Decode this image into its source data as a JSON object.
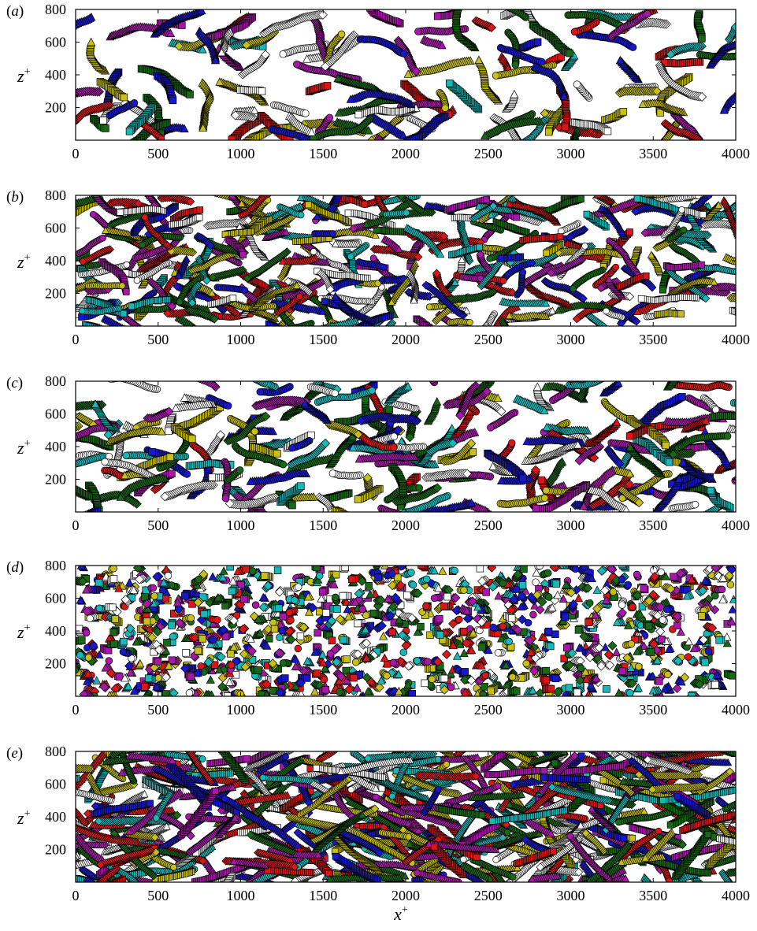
{
  "figure": {
    "x_label": "x",
    "x_label_sup": "+",
    "y_label": "z",
    "y_label_sup": "+"
  },
  "palette": [
    "#d81818",
    "#1818c8",
    "#186818",
    "#a818a8",
    "#c8c018",
    "#18b8b8",
    "#ffffff"
  ],
  "marker_shapes": [
    "diamond",
    "square",
    "circle",
    "triangle"
  ],
  "chart_data": [
    {
      "type": "scatter",
      "panel": "(a)",
      "panel_letter": "a",
      "xlim": [
        0,
        4000
      ],
      "ylim": [
        0,
        800
      ],
      "x_ticks": [
        0,
        500,
        1000,
        1500,
        2000,
        2500,
        3000,
        3500,
        4000
      ],
      "y_ticks": [
        200,
        400,
        600,
        800
      ],
      "tracks": 130,
      "track_length": [
        10,
        34
      ],
      "step": 12,
      "curvature": 0.35,
      "marker_size": 5.5,
      "seed": 11,
      "title": "",
      "xlabel": "",
      "ylabel": ""
    },
    {
      "type": "scatter",
      "panel": "(b)",
      "panel_letter": "b",
      "xlim": [
        0,
        4000
      ],
      "ylim": [
        0,
        800
      ],
      "x_ticks": [
        0,
        500,
        1000,
        1500,
        2000,
        2500,
        3000,
        3500,
        4000
      ],
      "y_ticks": [
        200,
        400,
        600,
        800
      ],
      "tracks": 320,
      "track_length": [
        10,
        30
      ],
      "step": 12,
      "curvature": 0.3,
      "marker_size": 5,
      "seed": 23,
      "title": "",
      "xlabel": "",
      "ylabel": ""
    },
    {
      "type": "scatter",
      "panel": "(c)",
      "panel_letter": "c",
      "xlim": [
        0,
        4000
      ],
      "ylim": [
        0,
        800
      ],
      "x_ticks": [
        0,
        500,
        1000,
        1500,
        2000,
        2500,
        3000,
        3500,
        4000
      ],
      "y_ticks": [
        200,
        400,
        600,
        800
      ],
      "tracks": 210,
      "track_length": [
        10,
        32
      ],
      "step": 12,
      "curvature": 0.38,
      "marker_size": 5.5,
      "seed": 37,
      "title": "",
      "xlabel": "",
      "ylabel": ""
    },
    {
      "type": "scatter",
      "panel": "(d)",
      "panel_letter": "d",
      "xlim": [
        0,
        4000
      ],
      "ylim": [
        0,
        800
      ],
      "x_ticks": [
        0,
        500,
        1000,
        1500,
        2000,
        2500,
        3000,
        3500,
        4000
      ],
      "y_ticks": [
        200,
        400,
        600,
        800
      ],
      "tracks": 1150,
      "track_length": [
        1,
        4
      ],
      "step": 11,
      "curvature": 0.8,
      "marker_size": 5.5,
      "seed": 41,
      "title": "",
      "xlabel": "",
      "ylabel": ""
    },
    {
      "type": "scatter",
      "panel": "(e)",
      "panel_letter": "e",
      "xlim": [
        0,
        4000
      ],
      "ylim": [
        0,
        800
      ],
      "x_ticks": [
        0,
        500,
        1000,
        1500,
        2000,
        2500,
        3000,
        3500,
        4000
      ],
      "y_ticks": [
        200,
        400,
        600,
        800
      ],
      "tracks": 460,
      "track_length": [
        14,
        38
      ],
      "step": 12,
      "curvature": 0.12,
      "marker_size": 5,
      "seed": 53,
      "title": "",
      "xlabel": "",
      "ylabel": ""
    }
  ]
}
